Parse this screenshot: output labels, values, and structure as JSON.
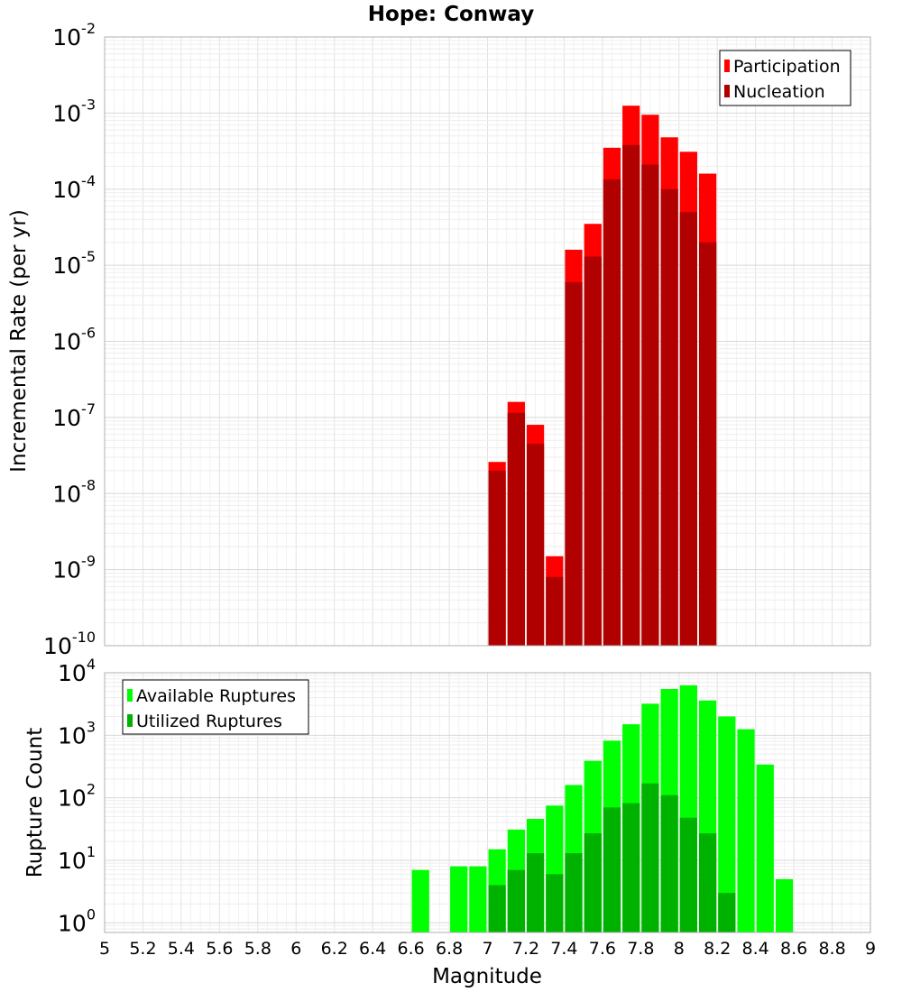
{
  "chart_data": [
    {
      "type": "bar",
      "title": "Hope: Conway",
      "ylabel": "Incremental Rate (per yr)",
      "xlabel": "",
      "xlim": [
        5,
        9
      ],
      "ylim": [
        1e-10,
        0.01
      ],
      "yscale": "log",
      "grid": true,
      "legend_position": "top-right",
      "bar_width": 0.1,
      "x": [
        7.05,
        7.15,
        7.25,
        7.35,
        7.45,
        7.55,
        7.65,
        7.75,
        7.85,
        7.95,
        8.05,
        8.15
      ],
      "series": [
        {
          "name": "Participation",
          "color": "#ff0000",
          "values": [
            2.6e-08,
            1.6e-07,
            8e-08,
            1.5e-09,
            1.6e-05,
            3.5e-05,
            0.00035,
            0.00125,
            0.00095,
            0.00048,
            0.00031,
            0.00016
          ]
        },
        {
          "name": "Nucleation",
          "color": "#b00000",
          "values": [
            2e-08,
            1.15e-07,
            4.5e-08,
            8e-10,
            6e-06,
            1.3e-05,
            0.000135,
            0.00038,
            0.00021,
            0.0001,
            5e-05,
            2e-05
          ]
        }
      ]
    },
    {
      "type": "bar",
      "title": "",
      "ylabel": "Rupture Count",
      "xlabel": "Magnitude",
      "xlim": [
        5,
        9
      ],
      "ylim": [
        0.7,
        10000
      ],
      "yscale": "log",
      "grid": true,
      "legend_position": "top-left",
      "bar_width": 0.1,
      "x_ticks": [
        "5",
        "5.2",
        "5.4",
        "5.6",
        "5.8",
        "6",
        "6.2",
        "6.4",
        "6.6",
        "6.8",
        "7",
        "7.2",
        "7.4",
        "7.6",
        "7.8",
        "8",
        "8.2",
        "8.4",
        "8.6",
        "8.8",
        "9"
      ],
      "series": [
        {
          "name": "Available Ruptures",
          "color": "#00ff00",
          "x": [
            6.65,
            6.85,
            6.95,
            7.05,
            7.15,
            7.25,
            7.35,
            7.45,
            7.55,
            7.65,
            7.75,
            7.85,
            7.95,
            8.05,
            8.15,
            8.25,
            8.35,
            8.45,
            8.55
          ],
          "values": [
            7,
            8,
            8,
            15,
            31,
            46,
            75,
            160,
            390,
            820,
            1500,
            3200,
            5500,
            6300,
            3600,
            2000,
            1250,
            340,
            5
          ]
        },
        {
          "name": "Utilized Ruptures",
          "color": "#00b200",
          "x": [
            7.05,
            7.15,
            7.25,
            7.35,
            7.45,
            7.55,
            7.65,
            7.75,
            7.85,
            7.95,
            8.05,
            8.15,
            8.25
          ],
          "values": [
            4,
            7,
            13,
            6,
            13,
            27,
            70,
            82,
            170,
            110,
            48,
            27,
            3
          ]
        }
      ]
    }
  ]
}
